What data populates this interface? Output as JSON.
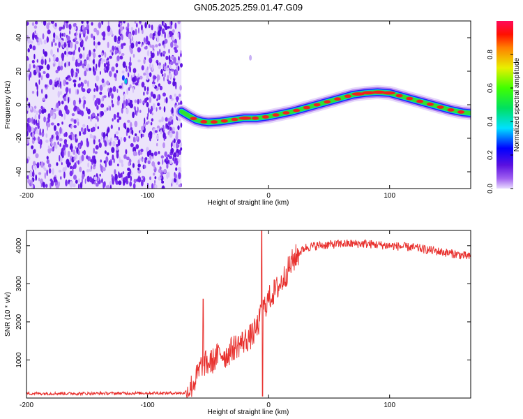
{
  "title": "GN05.2025.259.01.47.G09",
  "colors": {
    "snr_line": "#e8312e",
    "noise_purple": "#8a3cf0",
    "frame": "#000000"
  },
  "chart_data": [
    {
      "type": "heatmap",
      "title": "GN05.2025.259.01.47.G09",
      "xlabel": "Height of straight line (km)",
      "ylabel": "Frequency (Hz)",
      "xlim": [
        -200,
        167
      ],
      "ylim": [
        -50,
        50
      ],
      "x_ticks": [
        -200,
        -100,
        0,
        100
      ],
      "y_ticks": [
        -40,
        -20,
        0,
        20,
        40
      ],
      "noise_region_x": [
        -200,
        -72
      ],
      "frequency_track": {
        "x": [
          -72,
          -65,
          -60,
          -55,
          -50,
          -40,
          -30,
          -20,
          -10,
          0,
          10,
          20,
          30,
          40,
          50,
          60,
          70,
          80,
          90,
          100,
          110,
          120,
          130,
          140,
          150,
          160,
          167
        ],
        "y": [
          -4,
          -7,
          -9,
          -10,
          -10.5,
          -10,
          -9,
          -8,
          -8,
          -7,
          -5.5,
          -4,
          -2,
          0,
          2,
          4,
          6,
          7,
          7.5,
          7,
          5,
          3,
          1,
          -1,
          -3,
          -4.5,
          -5
        ]
      },
      "colorbar": {
        "label": "Normalized spectral amplitude",
        "range": [
          0,
          1
        ],
        "ticks": [
          "0.0",
          "0.2",
          "0.4",
          "0.6",
          "0.8"
        ],
        "tick_values": [
          0.0,
          0.2,
          0.4,
          0.6,
          0.8
        ]
      }
    },
    {
      "type": "line",
      "xlabel": "Height of straight line (km)",
      "ylabel": "SNR (10 * v/v)",
      "xlim": [
        -200,
        167
      ],
      "ylim": [
        0,
        4400
      ],
      "x_ticks": [
        -200,
        -100,
        0,
        100
      ],
      "y_ticks": [
        1000,
        2000,
        3000,
        4000
      ],
      "series": [
        {
          "name": "SNR",
          "x": [
            -200,
            -150,
            -100,
            -70,
            -65,
            -60,
            -55,
            -50,
            -45,
            -40,
            -35,
            -30,
            -25,
            -20,
            -15,
            -10,
            -5,
            0,
            5,
            10,
            15,
            20,
            25,
            30,
            40,
            60,
            80,
            100,
            120,
            140,
            160,
            167
          ],
          "y": [
            120,
            120,
            130,
            130,
            250,
            500,
            900,
            900,
            1000,
            1200,
            1100,
            1300,
            1400,
            1500,
            1600,
            1800,
            2300,
            2600,
            2800,
            3000,
            3300,
            3600,
            3800,
            3950,
            4000,
            4050,
            4050,
            4000,
            3950,
            3850,
            3750,
            3700
          ]
        }
      ],
      "spikes": [
        {
          "x": -54,
          "y": 2600
        },
        {
          "x": -5.5,
          "y": 4400
        },
        {
          "x": -5,
          "y": 50
        }
      ]
    }
  ]
}
